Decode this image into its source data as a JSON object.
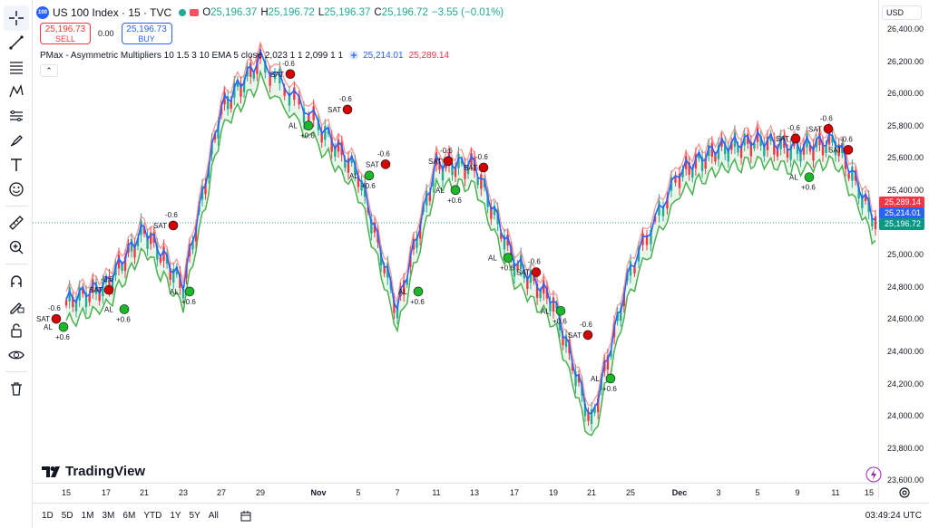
{
  "header": {
    "symbol_logo": "100",
    "symbol_title": "US 100 Index · 15 · TVC",
    "open_key": "O",
    "open": "25,196.37",
    "high_key": "H",
    "high": "25,196.72",
    "low_key": "L",
    "low": "25,196.37",
    "close_key": "C",
    "close": "25,196.72",
    "change": "−3.55 (−0.01%)"
  },
  "trade": {
    "sell_price": "25,196.73",
    "sell_label": "SELL",
    "spread": "0.00",
    "buy_price": "25,196.73",
    "buy_label": "BUY"
  },
  "indicator": {
    "name": "PMax - Asymmetric Multipliers 10 1.5 3 10 EMA 5 close 2,023 1 1 2,099 1 1",
    "value1": "25,214.01",
    "value2": "25,289.14",
    "collapse_glyph": "⌃"
  },
  "price_scale": {
    "currency": "USD",
    "labels": [
      "26,400.00",
      "26,200.00",
      "26,000.00",
      "25,800.00",
      "25,600.00",
      "25,400.00",
      "25,000.00",
      "24,800.00",
      "24,600.00",
      "24,400.00",
      "24,200.00",
      "24,000.00",
      "23,800.00",
      "23,600.00"
    ],
    "tags": [
      {
        "text": "25,289.14",
        "color": "#f23645"
      },
      {
        "text": "25,214.01",
        "color": "#2962ff"
      },
      {
        "text": "25,196.72",
        "color": "#089981"
      }
    ]
  },
  "time_scale": {
    "labels": [
      "15",
      "17",
      "21",
      "23",
      "27",
      "29",
      "Nov",
      "5",
      "7",
      "11",
      "13",
      "17",
      "19",
      "21",
      "25",
      "Dec",
      "3",
      "5",
      "9",
      "11",
      "15"
    ]
  },
  "bottom": {
    "ranges": [
      "1D",
      "5D",
      "1M",
      "3M",
      "6M",
      "YTD",
      "1Y",
      "5Y",
      "All"
    ],
    "clock": "03:49:24 UTC"
  },
  "brand": {
    "name": "TradingView"
  },
  "colors": {
    "up": "#22ab94",
    "down": "#f23645",
    "blue": "#2962ff",
    "red_line": "#f0706a",
    "green_line": "#4caf50",
    "fill": "#e3f5e6"
  },
  "toolbar": {
    "icons": [
      "crosshair-icon",
      "trend-line-icon",
      "fib-icon",
      "pattern-icon",
      "measure-icon",
      "brush-icon",
      "text-icon",
      "emoji-icon",
      "ruler-icon",
      "zoom-icon",
      "magnet-icon",
      "lock-drawings-icon",
      "unlock-icon",
      "eye-icon",
      "trash-icon"
    ]
  },
  "chart_data": {
    "type": "line",
    "series": [
      {
        "name": "",
        "x": [
          "15",
          "17",
          "21",
          "23",
          "27",
          "29",
          "Nov",
          "5",
          "7",
          "11",
          "13",
          "17",
          "19",
          "21",
          "25",
          "Dec",
          "3",
          "5",
          "9",
          "11",
          "15"
        ],
        "y": [
          24700,
          24800,
          25150,
          24800,
          25900,
          26200,
          25800,
          25500,
          24650,
          25550,
          25550,
          24950,
          24700,
          23950,
          24900,
          25500,
          25650,
          25700,
          25650,
          25700,
          25197
        ]
      }
    ],
    "ylim": [
      23600,
      26400
    ],
    "signals": [
      {
        "label": "SAT",
        "value": "-0.6"
      },
      {
        "label": "AL",
        "value": "+0.6"
      }
    ]
  }
}
